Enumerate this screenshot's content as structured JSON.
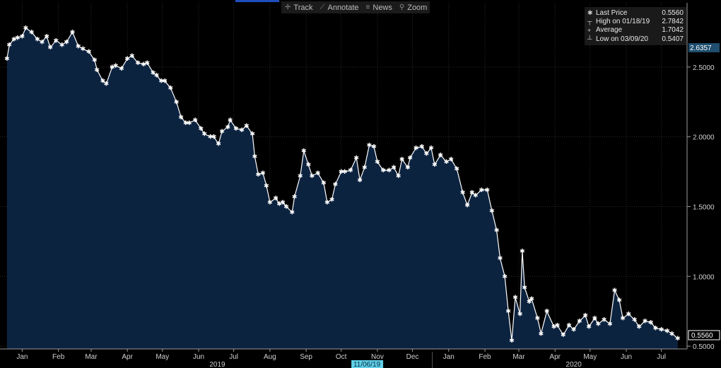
{
  "toolbar": {
    "items": [
      {
        "icon": "crosshair-icon",
        "glyph": "✛",
        "label": "Track"
      },
      {
        "icon": "pencil-icon",
        "glyph": "⟋",
        "label": "Annotate"
      },
      {
        "icon": "news-icon",
        "glyph": "≡",
        "label": "News"
      },
      {
        "icon": "magnifier-icon",
        "glyph": "⚲",
        "label": "Zoom"
      }
    ]
  },
  "legend": {
    "rows": [
      {
        "marker": "✱",
        "label": "Last Price",
        "value": "0.5560"
      },
      {
        "marker": "┬",
        "label": "High on 01/18/19",
        "value": "2.7842"
      },
      {
        "marker": "+",
        "label": "Average",
        "value": "1.7042"
      },
      {
        "marker": "┴",
        "label": "Low on 03/09/20",
        "value": "0.5407"
      }
    ]
  },
  "tags": {
    "top_value": "2.6357",
    "last_value": "0.5560",
    "cursor_date": "11/06/19"
  },
  "colors": {
    "background": "#000000",
    "area_fill": "#0c2340",
    "line": "#ffffff",
    "tag_top_bg": "#1f4e6e",
    "tag_cursor_bg": "#5fd0e8"
  },
  "chart_data": {
    "type": "area",
    "title": "",
    "xlabel": "",
    "ylabel": "",
    "ylim": [
      0.48,
      2.96
    ],
    "y_ticks": [
      "2.5000",
      "2.0000",
      "1.5000",
      "1.0000",
      "0.5000"
    ],
    "y_tick_values": [
      2.5,
      2.0,
      1.5,
      1.0,
      0.5
    ],
    "x_tick_labels": [
      "Jan",
      "Feb",
      "Mar",
      "Apr",
      "May",
      "Jun",
      "Jul",
      "Aug",
      "Sep",
      "Oct",
      "Nov",
      "Dec",
      "Jan",
      "Feb",
      "Mar",
      "Apr",
      "May",
      "Jun",
      "Jul"
    ],
    "x_tick_dates": [
      "2019-01-15",
      "2019-02-15",
      "2019-03-15",
      "2019-04-15",
      "2019-05-15",
      "2019-06-15",
      "2019-07-15",
      "2019-08-15",
      "2019-09-15",
      "2019-10-15",
      "2019-11-15",
      "2019-12-15",
      "2020-01-15",
      "2020-02-15",
      "2020-03-15",
      "2020-04-15",
      "2020-05-15",
      "2020-06-15",
      "2020-07-15"
    ],
    "year_labels": [
      {
        "label": "2019",
        "date": "2019-07-01"
      },
      {
        "label": "2020",
        "date": "2020-05-01"
      }
    ],
    "grid": true,
    "legend_position": "top-right",
    "series": [
      {
        "name": "Last Price",
        "points": [
          [
            "2019-01-02",
            2.56
          ],
          [
            "2019-01-04",
            2.66
          ],
          [
            "2019-01-08",
            2.7
          ],
          [
            "2019-01-11",
            2.71
          ],
          [
            "2019-01-15",
            2.72
          ],
          [
            "2019-01-18",
            2.78
          ],
          [
            "2019-01-23",
            2.75
          ],
          [
            "2019-01-28",
            2.7
          ],
          [
            "2019-02-01",
            2.68
          ],
          [
            "2019-02-05",
            2.72
          ],
          [
            "2019-02-08",
            2.64
          ],
          [
            "2019-02-13",
            2.69
          ],
          [
            "2019-02-18",
            2.66
          ],
          [
            "2019-02-22",
            2.68
          ],
          [
            "2019-02-27",
            2.75
          ],
          [
            "2019-03-04",
            2.65
          ],
          [
            "2019-03-08",
            2.63
          ],
          [
            "2019-03-13",
            2.61
          ],
          [
            "2019-03-18",
            2.55
          ],
          [
            "2019-03-20",
            2.48
          ],
          [
            "2019-03-25",
            2.4
          ],
          [
            "2019-03-28",
            2.38
          ],
          [
            "2019-04-02",
            2.5
          ],
          [
            "2019-04-05",
            2.51
          ],
          [
            "2019-04-10",
            2.49
          ],
          [
            "2019-04-15",
            2.56
          ],
          [
            "2019-04-19",
            2.58
          ],
          [
            "2019-04-24",
            2.53
          ],
          [
            "2019-04-29",
            2.52
          ],
          [
            "2019-05-02",
            2.53
          ],
          [
            "2019-05-07",
            2.46
          ],
          [
            "2019-05-10",
            2.44
          ],
          [
            "2019-05-14",
            2.4
          ],
          [
            "2019-05-17",
            2.4
          ],
          [
            "2019-05-22",
            2.35
          ],
          [
            "2019-05-27",
            2.25
          ],
          [
            "2019-05-31",
            2.14
          ],
          [
            "2019-06-04",
            2.1
          ],
          [
            "2019-06-07",
            2.1
          ],
          [
            "2019-06-12",
            2.12
          ],
          [
            "2019-06-17",
            2.06
          ],
          [
            "2019-06-20",
            2.02
          ],
          [
            "2019-06-25",
            2.0
          ],
          [
            "2019-06-28",
            2.0
          ],
          [
            "2019-07-02",
            1.95
          ],
          [
            "2019-07-05",
            2.04
          ],
          [
            "2019-07-10",
            2.07
          ],
          [
            "2019-07-12",
            2.12
          ],
          [
            "2019-07-17",
            2.06
          ],
          [
            "2019-07-22",
            2.05
          ],
          [
            "2019-07-26",
            2.08
          ],
          [
            "2019-07-31",
            2.02
          ],
          [
            "2019-08-02",
            1.86
          ],
          [
            "2019-08-05",
            1.73
          ],
          [
            "2019-08-09",
            1.74
          ],
          [
            "2019-08-12",
            1.65
          ],
          [
            "2019-08-15",
            1.53
          ],
          [
            "2019-08-20",
            1.56
          ],
          [
            "2019-08-23",
            1.52
          ],
          [
            "2019-08-26",
            1.53
          ],
          [
            "2019-08-29",
            1.5
          ],
          [
            "2019-09-03",
            1.46
          ],
          [
            "2019-09-05",
            1.57
          ],
          [
            "2019-09-10",
            1.72
          ],
          [
            "2019-09-13",
            1.9
          ],
          [
            "2019-09-17",
            1.8
          ],
          [
            "2019-09-20",
            1.72
          ],
          [
            "2019-09-25",
            1.74
          ],
          [
            "2019-09-30",
            1.67
          ],
          [
            "2019-10-03",
            1.53
          ],
          [
            "2019-10-07",
            1.55
          ],
          [
            "2019-10-10",
            1.66
          ],
          [
            "2019-10-15",
            1.75
          ],
          [
            "2019-10-18",
            1.75
          ],
          [
            "2019-10-23",
            1.76
          ],
          [
            "2019-10-28",
            1.85
          ],
          [
            "2019-10-31",
            1.69
          ],
          [
            "2019-11-04",
            1.78
          ],
          [
            "2019-11-08",
            1.94
          ],
          [
            "2019-11-12",
            1.93
          ],
          [
            "2019-11-15",
            1.82
          ],
          [
            "2019-11-20",
            1.76
          ],
          [
            "2019-11-25",
            1.76
          ],
          [
            "2019-11-29",
            1.78
          ],
          [
            "2019-12-03",
            1.72
          ],
          [
            "2019-12-06",
            1.84
          ],
          [
            "2019-12-11",
            1.78
          ],
          [
            "2019-12-13",
            1.85
          ],
          [
            "2019-12-18",
            1.92
          ],
          [
            "2019-12-23",
            1.93
          ],
          [
            "2019-12-27",
            1.88
          ],
          [
            "2019-12-31",
            1.92
          ],
          [
            "2020-01-03",
            1.8
          ],
          [
            "2020-01-08",
            1.87
          ],
          [
            "2020-01-13",
            1.82
          ],
          [
            "2020-01-17",
            1.84
          ],
          [
            "2020-01-22",
            1.77
          ],
          [
            "2020-01-27",
            1.6
          ],
          [
            "2020-01-31",
            1.51
          ],
          [
            "2020-02-04",
            1.6
          ],
          [
            "2020-02-07",
            1.58
          ],
          [
            "2020-02-12",
            1.62
          ],
          [
            "2020-02-17",
            1.62
          ],
          [
            "2020-02-21",
            1.47
          ],
          [
            "2020-02-25",
            1.33
          ],
          [
            "2020-02-28",
            1.13
          ],
          [
            "2020-03-03",
            1.0
          ],
          [
            "2020-03-06",
            0.75
          ],
          [
            "2020-03-09",
            0.54
          ],
          [
            "2020-03-12",
            0.85
          ],
          [
            "2020-03-16",
            0.73
          ],
          [
            "2020-03-18",
            1.18
          ],
          [
            "2020-03-20",
            0.92
          ],
          [
            "2020-03-24",
            0.82
          ],
          [
            "2020-03-26",
            0.84
          ],
          [
            "2020-03-31",
            0.7
          ],
          [
            "2020-04-03",
            0.59
          ],
          [
            "2020-04-08",
            0.75
          ],
          [
            "2020-04-14",
            0.64
          ],
          [
            "2020-04-17",
            0.65
          ],
          [
            "2020-04-22",
            0.58
          ],
          [
            "2020-04-27",
            0.65
          ],
          [
            "2020-05-01",
            0.62
          ],
          [
            "2020-05-06",
            0.68
          ],
          [
            "2020-05-11",
            0.72
          ],
          [
            "2020-05-14",
            0.64
          ],
          [
            "2020-05-19",
            0.7
          ],
          [
            "2020-05-22",
            0.66
          ],
          [
            "2020-05-27",
            0.69
          ],
          [
            "2020-06-01",
            0.66
          ],
          [
            "2020-06-05",
            0.9
          ],
          [
            "2020-06-09",
            0.83
          ],
          [
            "2020-06-12",
            0.7
          ],
          [
            "2020-06-17",
            0.73
          ],
          [
            "2020-06-22",
            0.69
          ],
          [
            "2020-06-26",
            0.64
          ],
          [
            "2020-07-01",
            0.68
          ],
          [
            "2020-07-06",
            0.67
          ],
          [
            "2020-07-10",
            0.63
          ],
          [
            "2020-07-15",
            0.62
          ],
          [
            "2020-07-20",
            0.61
          ],
          [
            "2020-07-24",
            0.59
          ],
          [
            "2020-07-29",
            0.556
          ]
        ]
      }
    ]
  }
}
